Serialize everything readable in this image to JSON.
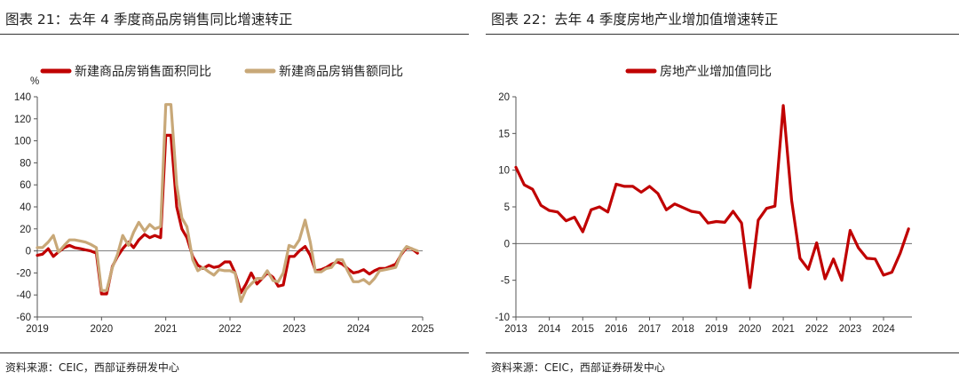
{
  "figures": [
    {
      "title": "图表 21：去年 4 季度商品房销售同比增速转正",
      "source": "资料来源：CEIC，西部证券研发中心"
    },
    {
      "title": "图表 22：去年 4 季度房地产业增加值增速转正",
      "source": "资料来源：CEIC，西部证券研发中心"
    }
  ],
  "chart_data": [
    {
      "type": "line",
      "ylabel": "%",
      "ylim": [
        -60,
        140
      ],
      "yticks": [
        -60,
        -40,
        -20,
        0,
        20,
        40,
        60,
        80,
        100,
        120,
        140
      ],
      "xlim": [
        2019,
        2025
      ],
      "xticks": [
        "2019",
        "2020",
        "2021",
        "2022",
        "2023",
        "2024",
        "2025"
      ],
      "legend_position": "top",
      "grid": false,
      "series": [
        {
          "name": "新建商品房销售面积同比",
          "color": "#c00000",
          "x": [
            2019.0,
            2019.08,
            2019.17,
            2019.25,
            2019.33,
            2019.42,
            2019.5,
            2019.58,
            2019.67,
            2019.75,
            2019.83,
            2019.92,
            2020.0,
            2020.08,
            2020.17,
            2020.25,
            2020.33,
            2020.42,
            2020.5,
            2020.58,
            2020.67,
            2020.75,
            2020.83,
            2020.92,
            2021.0,
            2021.08,
            2021.17,
            2021.25,
            2021.33,
            2021.42,
            2021.5,
            2021.58,
            2021.67,
            2021.75,
            2021.83,
            2021.92,
            2022.0,
            2022.08,
            2022.17,
            2022.25,
            2022.33,
            2022.42,
            2022.5,
            2022.58,
            2022.67,
            2022.75,
            2022.83,
            2022.92,
            2023.0,
            2023.08,
            2023.17,
            2023.25,
            2023.33,
            2023.42,
            2023.5,
            2023.58,
            2023.67,
            2023.75,
            2023.83,
            2023.92,
            2024.0,
            2024.08,
            2024.17,
            2024.25,
            2024.33,
            2024.42,
            2024.5,
            2024.58,
            2024.67,
            2024.75,
            2024.83,
            2024.92
          ],
          "values": [
            -4,
            -3,
            2,
            -5,
            -1,
            3,
            5,
            3,
            2,
            1,
            0,
            -2,
            -39,
            -39,
            -14,
            -5,
            2,
            8,
            3,
            10,
            15,
            12,
            14,
            12,
            105,
            105,
            40,
            20,
            12,
            -5,
            -13,
            -16,
            -13,
            -15,
            -14,
            -10,
            -10,
            -20,
            -38,
            -30,
            -20,
            -30,
            -25,
            -20,
            -24,
            -32,
            -31,
            -5,
            -5,
            0,
            4,
            -4,
            -18,
            -17,
            -15,
            -12,
            -10,
            -12,
            -16,
            -20,
            -19,
            -17,
            -21,
            -18,
            -16,
            -16,
            -14,
            -12,
            -3,
            3,
            2,
            -2
          ]
        },
        {
          "name": "新建商品房销售额同比",
          "color": "#c8a878",
          "x": [
            2019.0,
            2019.08,
            2019.17,
            2019.25,
            2019.33,
            2019.42,
            2019.5,
            2019.58,
            2019.67,
            2019.75,
            2019.83,
            2019.92,
            2020.0,
            2020.08,
            2020.17,
            2020.25,
            2020.33,
            2020.42,
            2020.5,
            2020.58,
            2020.67,
            2020.75,
            2020.83,
            2020.92,
            2021.0,
            2021.08,
            2021.17,
            2021.25,
            2021.33,
            2021.42,
            2021.5,
            2021.58,
            2021.67,
            2021.75,
            2021.83,
            2021.92,
            2022.0,
            2022.08,
            2022.17,
            2022.25,
            2022.33,
            2022.42,
            2022.5,
            2022.58,
            2022.67,
            2022.75,
            2022.83,
            2022.92,
            2023.0,
            2023.08,
            2023.17,
            2023.25,
            2023.33,
            2023.42,
            2023.5,
            2023.58,
            2023.67,
            2023.75,
            2023.83,
            2023.92,
            2024.0,
            2024.08,
            2024.17,
            2024.25,
            2024.33,
            2024.42,
            2024.5,
            2024.58,
            2024.67,
            2024.75,
            2024.83,
            2024.92
          ],
          "values": [
            3,
            3,
            8,
            14,
            -1,
            5,
            10,
            10,
            9,
            8,
            6,
            3,
            -36,
            -36,
            -15,
            -3,
            14,
            5,
            17,
            26,
            18,
            24,
            20,
            22,
            133,
            133,
            60,
            30,
            22,
            -8,
            -18,
            -15,
            -19,
            -22,
            -17,
            -18,
            -18,
            -20,
            -46,
            -35,
            -30,
            -25,
            -25,
            -18,
            -27,
            -28,
            -20,
            5,
            3,
            10,
            28,
            8,
            -19,
            -19,
            -16,
            -15,
            -8,
            -8,
            -18,
            -28,
            -28,
            -26,
            -30,
            -25,
            -18,
            -17,
            -16,
            -15,
            -2,
            4,
            2,
            0
          ]
        }
      ]
    },
    {
      "type": "line",
      "ylim": [
        -10,
        20
      ],
      "yticks": [
        -10,
        -5,
        0,
        5,
        10,
        15,
        20
      ],
      "xlim": [
        2013,
        2024.85
      ],
      "xticks": [
        "2013",
        "2014",
        "2015",
        "2016",
        "2017",
        "2018",
        "2019",
        "2020",
        "2021",
        "2022",
        "2023",
        "2024"
      ],
      "legend_position": "top",
      "grid": false,
      "series": [
        {
          "name": "房地产业增加值同比",
          "color": "#c00000",
          "x": [
            2013.0,
            2013.25,
            2013.5,
            2013.75,
            2014.0,
            2014.25,
            2014.5,
            2014.75,
            2015.0,
            2015.25,
            2015.5,
            2015.75,
            2016.0,
            2016.25,
            2016.5,
            2016.75,
            2017.0,
            2017.25,
            2017.5,
            2017.75,
            2018.0,
            2018.25,
            2018.5,
            2018.75,
            2019.0,
            2019.25,
            2019.5,
            2019.75,
            2020.0,
            2020.25,
            2020.5,
            2020.75,
            2021.0,
            2021.25,
            2021.5,
            2021.75,
            2022.0,
            2022.25,
            2022.5,
            2022.75,
            2023.0,
            2023.25,
            2023.5,
            2023.75,
            2024.0,
            2024.25,
            2024.5,
            2024.75
          ],
          "values": [
            10.4,
            8.0,
            7.4,
            5.2,
            4.5,
            4.3,
            3.1,
            3.6,
            1.6,
            4.6,
            5.0,
            4.3,
            8.1,
            7.8,
            7.8,
            7.0,
            7.8,
            6.8,
            4.6,
            5.4,
            4.9,
            4.4,
            4.2,
            2.8,
            3.0,
            2.9,
            4.4,
            2.8,
            -6.0,
            3.2,
            4.8,
            5.1,
            18.8,
            5.9,
            -2.0,
            -3.5,
            0.1,
            -4.8,
            -2.1,
            -5.0,
            1.8,
            -0.6,
            -2.0,
            -2.1,
            -4.3,
            -3.9,
            -1.3,
            2.0
          ]
        }
      ]
    }
  ]
}
